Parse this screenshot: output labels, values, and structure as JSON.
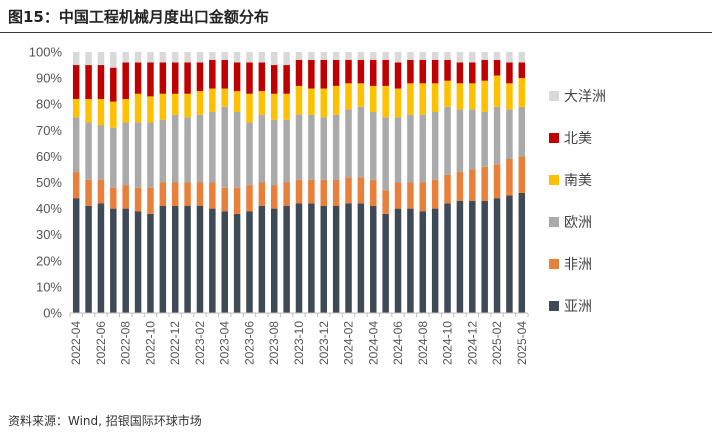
{
  "header": {
    "title": "图15：中国工程机械月度出口金额分布"
  },
  "source": "资料来源：Wind, 招银国际环球市场",
  "chart_data": {
    "type": "bar",
    "stacked": true,
    "percent": true,
    "title": "中国工程机械月度出口金额分布",
    "ylim": [
      0,
      100
    ],
    "yticks": [
      "0%",
      "10%",
      "20%",
      "30%",
      "40%",
      "50%",
      "60%",
      "70%",
      "80%",
      "90%",
      "100%"
    ],
    "categories": [
      "2022-04",
      "2022-05",
      "2022-06",
      "2022-07",
      "2022-08",
      "2022-09",
      "2022-10",
      "2022-11",
      "2022-12",
      "2023-01",
      "2023-02",
      "2023-03",
      "2023-04",
      "2023-05",
      "2023-06",
      "2023-07",
      "2023-08",
      "2023-09",
      "2023-10",
      "2023-11",
      "2023-12",
      "2024-01",
      "2024-02",
      "2024-03",
      "2024-04",
      "2024-05",
      "2024-06",
      "2024-07",
      "2024-08",
      "2024-09",
      "2024-10",
      "2024-11",
      "2024-12",
      "2025-01",
      "2025-02",
      "2025-03",
      "2025-04"
    ],
    "xtick_labels": [
      "2022-04",
      "2022-06",
      "2022-08",
      "2022-10",
      "2022-12",
      "2023-02",
      "2023-04",
      "2023-06",
      "2023-08",
      "2023-10",
      "2023-12",
      "2024-02",
      "2024-04",
      "2024-06",
      "2024-08",
      "2024-10",
      "2024-12",
      "2025-02",
      "2025-04"
    ],
    "series": [
      {
        "name": "亚洲",
        "color": "#3f4a57",
        "values": [
          44,
          41,
          42,
          40,
          40,
          39,
          38,
          41,
          41,
          41,
          41,
          40,
          39,
          38,
          39,
          41,
          40,
          41,
          42,
          42,
          41,
          41,
          42,
          42,
          41,
          38,
          40,
          40,
          39,
          40,
          42,
          43,
          43,
          43,
          44,
          45,
          46
        ]
      },
      {
        "name": "非洲",
        "color": "#e8803c",
        "values": [
          10,
          10,
          9,
          8,
          9,
          9,
          10,
          9,
          9,
          9,
          9,
          10,
          9,
          10,
          10,
          9,
          9,
          9,
          9,
          9,
          10,
          10,
          10,
          10,
          10,
          9,
          10,
          10,
          11,
          11,
          11,
          11,
          12,
          13,
          13,
          14,
          14
        ]
      },
      {
        "name": "欧洲",
        "color": "#aaaaaa",
        "values": [
          21,
          22,
          21,
          23,
          24,
          25,
          25,
          24,
          26,
          25,
          26,
          27,
          31,
          29,
          24,
          26,
          25,
          24,
          25,
          25,
          24,
          25,
          26,
          27,
          26,
          28,
          25,
          26,
          26,
          26,
          26,
          24,
          23,
          21,
          22,
          19,
          19
        ]
      },
      {
        "name": "南美",
        "color": "#ffc000",
        "values": [
          7,
          9,
          10,
          10,
          9,
          11,
          10,
          10,
          8,
          9,
          9,
          9,
          7,
          8,
          11,
          9,
          10,
          10,
          11,
          10,
          11,
          11,
          10,
          9,
          10,
          12,
          11,
          12,
          12,
          11,
          10,
          10,
          10,
          12,
          12,
          10,
          11
        ]
      },
      {
        "name": "北美",
        "color": "#c00000",
        "values": [
          13,
          13,
          13,
          13,
          14,
          12,
          13,
          12,
          12,
          12,
          11,
          11,
          11,
          11,
          12,
          11,
          11,
          11,
          10,
          11,
          11,
          10,
          9,
          9,
          10,
          10,
          10,
          9,
          9,
          9,
          8,
          8,
          8,
          8,
          6,
          8,
          6
        ]
      },
      {
        "name": "大洋洲",
        "color": "#d9d9d9",
        "values": [
          5,
          5,
          5,
          6,
          4,
          4,
          4,
          4,
          4,
          4,
          4,
          3,
          3,
          4,
          4,
          4,
          5,
          5,
          3,
          3,
          3,
          3,
          3,
          3,
          3,
          3,
          4,
          3,
          3,
          3,
          3,
          4,
          4,
          3,
          3,
          4,
          4
        ]
      }
    ],
    "legend": {
      "position": "right",
      "order": [
        "大洋洲",
        "北美",
        "南美",
        "欧洲",
        "非洲",
        "亚洲"
      ]
    }
  }
}
